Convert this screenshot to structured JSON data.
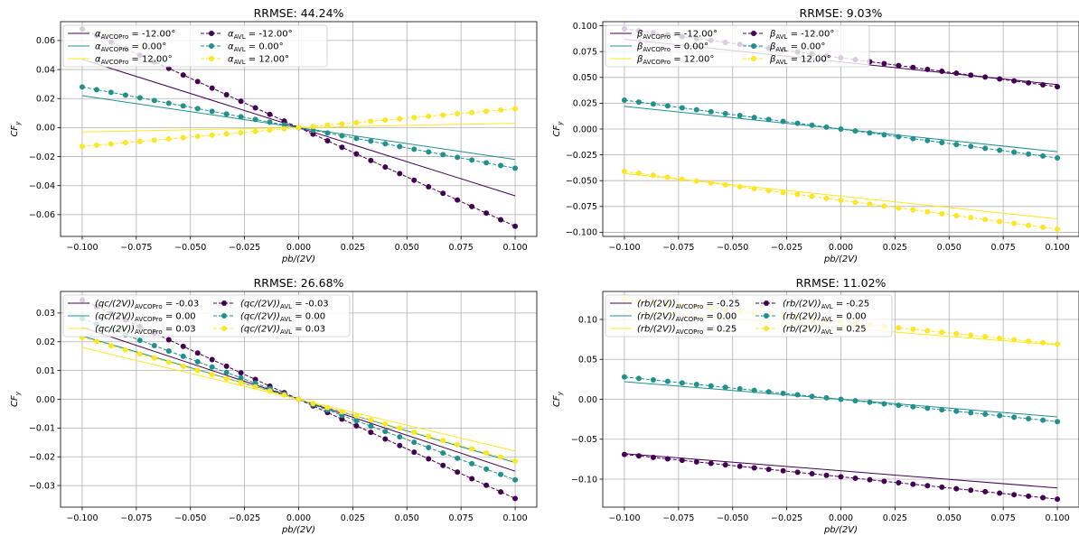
{
  "chart_data": [
    {
      "type": "line",
      "title": "RRMSE: 44.24%",
      "xlabel": "pb/(2V)",
      "ylabel": "CF",
      "ylabel_sub": "y",
      "xlim": [
        -0.11,
        0.11
      ],
      "ylim": [
        -0.075,
        0.073
      ],
      "xticks": [
        -0.1,
        -0.075,
        -0.05,
        -0.025,
        0.0,
        0.025,
        0.05,
        0.075,
        0.1
      ],
      "xtick_labels": [
        "−0.100",
        "−0.075",
        "−0.050",
        "−0.025",
        "0.000",
        "0.025",
        "0.050",
        "0.075",
        "0.100"
      ],
      "yticks": [
        -0.06,
        -0.04,
        -0.02,
        0.0,
        0.02,
        0.04,
        0.06
      ],
      "ytick_labels": [
        "−0.06",
        "−0.04",
        "−0.02",
        "0.00",
        "0.02",
        "0.04",
        "0.06"
      ],
      "grid": true,
      "legend_placement": "top-left",
      "x": [
        -0.1,
        0.1
      ],
      "series": [
        {
          "var": "α",
          "sub": "AVCOPro",
          "value_label": " = -12.00°",
          "style": "line",
          "color": "#440154",
          "y": [
            0.047,
            -0.047
          ]
        },
        {
          "var": "α",
          "sub": "AVCOPro",
          "value_label": " = 0.00°",
          "style": "line",
          "color": "#21918c",
          "y": [
            0.022,
            -0.022
          ]
        },
        {
          "var": "α",
          "sub": "AVCOPro",
          "value_label": " = 12.00°",
          "style": "line",
          "color": "#fde725",
          "y": [
            -0.003,
            0.003
          ]
        },
        {
          "var": "α",
          "sub": "AVL",
          "value_label": " = -12.00°",
          "style": "dots",
          "color": "#440154",
          "y": [
            0.068,
            -0.068
          ]
        },
        {
          "var": "α",
          "sub": "AVL",
          "value_label": " = 0.00°",
          "style": "dots",
          "color": "#21918c",
          "y": [
            0.028,
            -0.028
          ]
        },
        {
          "var": "α",
          "sub": "AVL",
          "value_label": " = 12.00°",
          "style": "dots",
          "color": "#fde725",
          "y": [
            -0.013,
            0.013
          ]
        }
      ]
    },
    {
      "type": "line",
      "title": "RRMSE: 9.03%",
      "xlabel": "pb/(2V)",
      "ylabel": "CF",
      "ylabel_sub": "y",
      "xlim": [
        -0.11,
        0.11
      ],
      "ylim": [
        -0.104,
        0.104
      ],
      "xticks": [
        -0.1,
        -0.075,
        -0.05,
        -0.025,
        0.0,
        0.025,
        0.05,
        0.075,
        0.1
      ],
      "xtick_labels": [
        "−0.100",
        "−0.075",
        "−0.050",
        "−0.025",
        "0.000",
        "0.025",
        "0.050",
        "0.075",
        "0.100"
      ],
      "yticks": [
        -0.1,
        -0.075,
        -0.05,
        -0.025,
        0.0,
        0.025,
        0.05,
        0.075,
        0.1
      ],
      "ytick_labels": [
        "−0.100",
        "−0.075",
        "−0.050",
        "−0.025",
        "0.000",
        "0.025",
        "0.050",
        "0.075",
        "0.100"
      ],
      "grid": true,
      "legend_placement": "top-left",
      "x": [
        -0.1,
        0.1
      ],
      "series": [
        {
          "var": "β",
          "sub": "AVCOPro",
          "value_label": " = -12.00°",
          "style": "line",
          "color": "#440154",
          "y": [
            0.087,
            0.043
          ]
        },
        {
          "var": "β",
          "sub": "AVCOPro",
          "value_label": " = 0.00°",
          "style": "line",
          "color": "#21918c",
          "y": [
            0.022,
            -0.022
          ]
        },
        {
          "var": "β",
          "sub": "AVCOPro",
          "value_label": " = 12.00°",
          "style": "line",
          "color": "#fde725",
          "y": [
            -0.043,
            -0.087
          ]
        },
        {
          "var": "β",
          "sub": "AVL",
          "value_label": " = -12.00°",
          "style": "dots",
          "color": "#440154",
          "y": [
            0.097,
            0.041
          ]
        },
        {
          "var": "β",
          "sub": "AVL",
          "value_label": " = 0.00°",
          "style": "dots",
          "color": "#21918c",
          "y": [
            0.028,
            -0.028
          ]
        },
        {
          "var": "β",
          "sub": "AVL",
          "value_label": " = 12.00°",
          "style": "dots",
          "color": "#fde725",
          "y": [
            -0.041,
            -0.097
          ]
        }
      ]
    },
    {
      "type": "line",
      "title": "RRMSE: 26.68%",
      "xlabel": "pb/(2V)",
      "ylabel": "CF",
      "ylabel_sub": "y",
      "xlim": [
        -0.11,
        0.11
      ],
      "ylim": [
        -0.0375,
        0.0375
      ],
      "xticks": [
        -0.1,
        -0.075,
        -0.05,
        -0.025,
        0.0,
        0.025,
        0.05,
        0.075,
        0.1
      ],
      "xtick_labels": [
        "−0.100",
        "−0.075",
        "−0.050",
        "−0.025",
        "0.000",
        "0.025",
        "0.050",
        "0.075",
        "0.100"
      ],
      "yticks": [
        -0.03,
        -0.02,
        -0.01,
        0.0,
        0.01,
        0.02,
        0.03
      ],
      "ytick_labels": [
        "−0.03",
        "−0.02",
        "−0.01",
        "0.00",
        "0.01",
        "0.02",
        "0.03"
      ],
      "grid": true,
      "legend_placement": "top-left",
      "x": [
        -0.1,
        0.1
      ],
      "series": [
        {
          "var": "(qc/(2V))",
          "sub": "AVCOPro",
          "value_label": " = -0.03",
          "style": "line",
          "color": "#440154",
          "y": [
            0.025,
            -0.025
          ]
        },
        {
          "var": "(qc/(2V))",
          "sub": "AVCOPro",
          "value_label": " = 0.00",
          "style": "line",
          "color": "#21918c",
          "y": [
            0.022,
            -0.022
          ]
        },
        {
          "var": "(qc/(2V))",
          "sub": "AVCOPro",
          "value_label": " = 0.03",
          "style": "line",
          "color": "#fde725",
          "y": [
            0.018,
            -0.018
          ]
        },
        {
          "var": "(qc/(2V))",
          "sub": "AVL",
          "value_label": " = -0.03",
          "style": "dots",
          "color": "#440154",
          "y": [
            0.0345,
            -0.0345
          ]
        },
        {
          "var": "(qc/(2V))",
          "sub": "AVL",
          "value_label": " = 0.00",
          "style": "dots",
          "color": "#21918c",
          "y": [
            0.028,
            -0.028
          ]
        },
        {
          "var": "(qc/(2V))",
          "sub": "AVL",
          "value_label": " = 0.03",
          "style": "dots",
          "color": "#fde725",
          "y": [
            0.0215,
            -0.0215
          ]
        }
      ]
    },
    {
      "type": "line",
      "title": "RRMSE: 11.02%",
      "xlabel": "pb/(2V)",
      "ylabel": "CF",
      "ylabel_sub": "y",
      "xlim": [
        -0.11,
        0.11
      ],
      "ylim": [
        -0.135,
        0.135
      ],
      "xticks": [
        -0.1,
        -0.075,
        -0.05,
        -0.025,
        0.0,
        0.025,
        0.05,
        0.075,
        0.1
      ],
      "xtick_labels": [
        "−0.100",
        "−0.075",
        "−0.050",
        "−0.025",
        "0.000",
        "0.025",
        "0.050",
        "0.075",
        "0.100"
      ],
      "yticks": [
        -0.1,
        -0.05,
        0.0,
        0.05,
        0.1
      ],
      "ytick_labels": [
        "−0.10",
        "−0.05",
        "0.00",
        "0.05",
        "0.10"
      ],
      "grid": true,
      "legend_placement": "top-left",
      "x": [
        -0.1,
        0.1
      ],
      "series": [
        {
          "var": "(rb/(2V))",
          "sub": "AVCOPro",
          "value_label": " = -0.25",
          "style": "line",
          "color": "#440154",
          "y": [
            -0.068,
            -0.111
          ]
        },
        {
          "var": "(rb/(2V))",
          "sub": "AVCOPro",
          "value_label": " = 0.00",
          "style": "line",
          "color": "#21918c",
          "y": [
            0.022,
            -0.022
          ]
        },
        {
          "var": "(rb/(2V))",
          "sub": "AVCOPro",
          "value_label": " = 0.25",
          "style": "line",
          "color": "#fde725",
          "y": [
            0.111,
            0.068
          ]
        },
        {
          "var": "(rb/(2V))",
          "sub": "AVL",
          "value_label": " = -0.25",
          "style": "dots",
          "color": "#440154",
          "y": [
            -0.069,
            -0.125
          ]
        },
        {
          "var": "(rb/(2V))",
          "sub": "AVL",
          "value_label": " = 0.00",
          "style": "dots",
          "color": "#21918c",
          "y": [
            0.028,
            -0.028
          ]
        },
        {
          "var": "(rb/(2V))",
          "sub": "AVL",
          "value_label": " = 0.25",
          "style": "dots",
          "color": "#fde725",
          "y": [
            0.125,
            0.069
          ]
        }
      ]
    }
  ]
}
